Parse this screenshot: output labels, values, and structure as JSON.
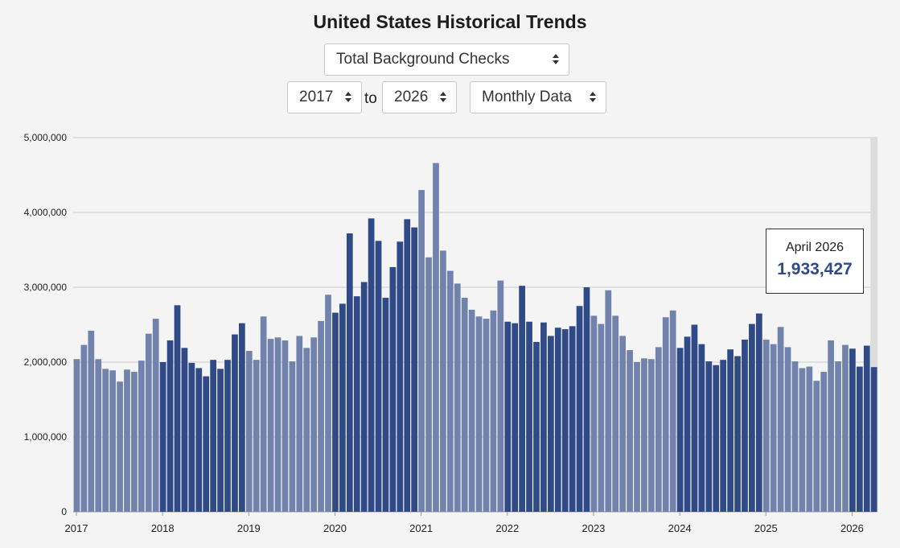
{
  "header": {
    "title": "United States Historical Trends",
    "metric_select": "Total Background Checks",
    "from_select": "2017",
    "to_label": "to",
    "to_select": "2026",
    "interval_select": "Monthly Data"
  },
  "tooltip": {
    "month": "April 2026",
    "value": "1,933,427"
  },
  "colors": {
    "light": "#7183ad",
    "dark": "#2f4a86",
    "highlight": "#dcdcdc",
    "grid": "#cccccc"
  },
  "chart_data": {
    "type": "bar",
    "title": "",
    "xlabel": "",
    "ylabel": "",
    "ylim": [
      0,
      5000000
    ],
    "yticks": [
      "0",
      "1,000,000",
      "2,000,000",
      "3,000,000",
      "4,000,000",
      "5,000,000"
    ],
    "xticks": [
      "2017",
      "2018",
      "2019",
      "2020",
      "2021",
      "2022",
      "2023",
      "2024",
      "2025",
      "2026"
    ],
    "grid": true,
    "highlighted": "April 2026",
    "series": [
      {
        "year": "2017",
        "values": [
          2040000,
          2230000,
          2420000,
          2040000,
          1910000,
          1890000,
          1740000,
          1900000,
          1870000,
          2020000,
          2380000,
          2580000
        ]
      },
      {
        "year": "2018",
        "values": [
          2000000,
          2290000,
          2760000,
          2190000,
          1990000,
          1920000,
          1810000,
          2030000,
          1910000,
          2030000,
          2370000,
          2520000
        ]
      },
      {
        "year": "2019",
        "values": [
          2150000,
          2030000,
          2610000,
          2310000,
          2330000,
          2290000,
          2010000,
          2350000,
          2190000,
          2330000,
          2550000,
          2900000
        ]
      },
      {
        "year": "2020",
        "values": [
          2660000,
          2780000,
          3720000,
          2880000,
          3070000,
          3920000,
          3620000,
          2860000,
          3270000,
          3610000,
          3910000,
          3800000
        ]
      },
      {
        "year": "2021",
        "values": [
          4300000,
          3400000,
          4660000,
          3490000,
          3220000,
          3050000,
          2860000,
          2700000,
          2610000,
          2580000,
          2690000,
          3090000
        ]
      },
      {
        "year": "2022",
        "values": [
          2540000,
          2520000,
          3020000,
          2540000,
          2270000,
          2530000,
          2350000,
          2460000,
          2440000,
          2480000,
          2750000,
          3000000
        ]
      },
      {
        "year": "2023",
        "values": [
          2620000,
          2510000,
          2960000,
          2620000,
          2350000,
          2160000,
          2000000,
          2050000,
          2040000,
          2200000,
          2600000,
          2690000
        ]
      },
      {
        "year": "2024",
        "values": [
          2190000,
          2340000,
          2500000,
          2240000,
          2010000,
          1960000,
          2030000,
          2170000,
          2080000,
          2300000,
          2510000,
          2650000
        ]
      },
      {
        "year": "2025",
        "values": [
          2300000,
          2240000,
          2470000,
          2200000,
          2010000,
          1920000,
          1940000,
          1750000,
          1870000,
          2290000,
          2010000,
          2230000
        ]
      },
      {
        "year": "2026",
        "values": [
          2180000,
          1940000,
          2220000,
          1933427
        ]
      }
    ]
  }
}
